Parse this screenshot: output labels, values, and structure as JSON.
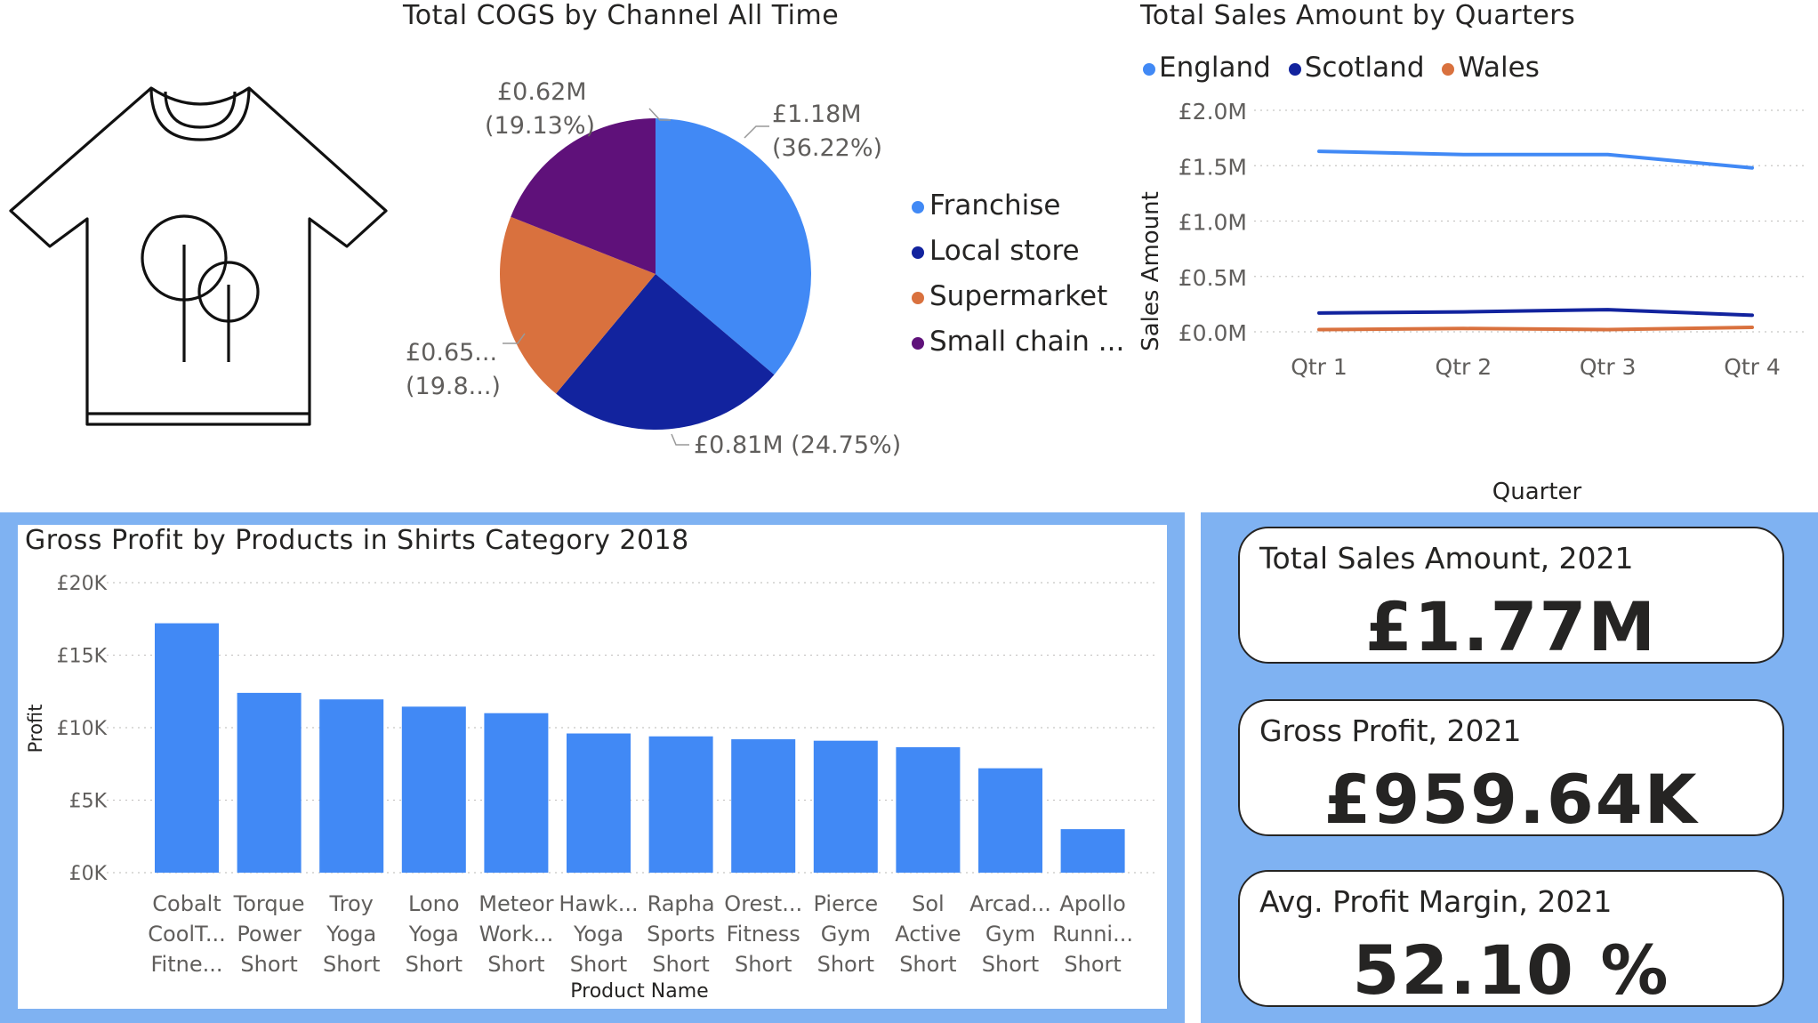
{
  "colors": {
    "blue": "#4189f5",
    "navy": "#12239e",
    "orange": "#d9713e",
    "purple": "#5f117a",
    "panel_blue": "#7fb2f2"
  },
  "icon": "t-shirt-with-trees-icon",
  "pie": {
    "title": "Total COGS by Channel All Time",
    "legend": [
      "Franchise",
      "Local store",
      "Supermarket",
      "Small chain ..."
    ],
    "labels": [
      {
        "value": "£1.18M",
        "pct": "(36.22%)"
      },
      {
        "value": "£0.81M (24.75%)",
        "pct": ""
      },
      {
        "value": "£0.65...",
        "pct": "(19.8...)"
      },
      {
        "value": "£0.62M",
        "pct": "(19.13%)"
      }
    ]
  },
  "line": {
    "title": "Total Sales Amount by Quarters",
    "legend": [
      "England",
      "Scotland",
      "Wales"
    ],
    "ylabel": "Sales Amount",
    "xlabel": "Quarter",
    "yticks": [
      "£0.0M",
      "£0.5M",
      "£1.0M",
      "£1.5M",
      "£2.0M"
    ],
    "xticks": [
      "Qtr 1",
      "Qtr 2",
      "Qtr 3",
      "Qtr 4"
    ]
  },
  "bar": {
    "title": "Gross Profit by Products in Shirts Category 2018",
    "ylabel": "Profit",
    "xlabel": "Product Name",
    "yticks": [
      "£0K",
      "£5K",
      "£10K",
      "£15K",
      "£20K"
    ],
    "product_labels": [
      [
        "Cobalt",
        "CoolT...",
        "Fitne..."
      ],
      [
        "Torque",
        "Power",
        "Short"
      ],
      [
        "Troy",
        "Yoga",
        "Short"
      ],
      [
        "Lono",
        "Yoga",
        "Short"
      ],
      [
        "Meteor",
        "Work...",
        "Short"
      ],
      [
        "Hawk...",
        "Yoga",
        "Short"
      ],
      [
        "Rapha",
        "Sports",
        "Short"
      ],
      [
        "Orest...",
        "Fitness",
        "Short"
      ],
      [
        "Pierce",
        "Gym",
        "Short"
      ],
      [
        "Sol",
        "Active",
        "Short"
      ],
      [
        "Arcad...",
        "Gym",
        "Short"
      ],
      [
        "Apollo",
        "Runni...",
        "Short"
      ]
    ]
  },
  "kpis": [
    {
      "label": "Total Sales Amount, 2021",
      "value": "£1.77M"
    },
    {
      "label": "Gross Profit, 2021",
      "value": "£959.64K"
    },
    {
      "label": "Avg. Profit Margin, 2021",
      "value": "52.10 %"
    }
  ],
  "chart_data": [
    {
      "type": "pie",
      "title": "Total COGS by Channel All Time",
      "categories": [
        "Franchise",
        "Local store",
        "Supermarket",
        "Small chain ..."
      ],
      "values": [
        1.18,
        0.81,
        0.65,
        0.62
      ],
      "percentages": [
        36.22,
        24.75,
        19.8,
        19.13
      ],
      "unit": "£M",
      "legend": "right"
    },
    {
      "type": "line",
      "title": "Total Sales Amount by Quarters",
      "xlabel": "Quarter",
      "ylabel": "Sales Amount",
      "categories": [
        "Qtr 1",
        "Qtr 2",
        "Qtr 3",
        "Qtr 4"
      ],
      "ylim": [
        0,
        2.0
      ],
      "unit": "£M",
      "series": [
        {
          "name": "England",
          "values": [
            1.63,
            1.6,
            1.6,
            1.48
          ]
        },
        {
          "name": "Scotland",
          "values": [
            0.17,
            0.18,
            0.2,
            0.15
          ]
        },
        {
          "name": "Wales",
          "values": [
            0.02,
            0.03,
            0.02,
            0.04
          ]
        }
      ],
      "grid": true,
      "legend": "top-left"
    },
    {
      "type": "bar",
      "title": "Gross Profit by Products in Shirts Category 2018",
      "xlabel": "Product Name",
      "ylabel": "Profit",
      "categories": [
        "Cobalt CoolT... Fitne...",
        "Torque Power Short",
        "Troy Yoga Short",
        "Lono Yoga Short",
        "Meteor Work... Short",
        "Hawk... Yoga Short",
        "Rapha Sports Short",
        "Orest... Fitness Short",
        "Pierce Gym Short",
        "Sol Active Short",
        "Arcad... Gym Short",
        "Apollo Runni... Short"
      ],
      "values": [
        17200,
        12400,
        11950,
        11450,
        11000,
        9600,
        9400,
        9200,
        9100,
        8650,
        7200,
        3000
      ],
      "ylim": [
        0,
        20000
      ],
      "unit": "£",
      "grid": true
    }
  ]
}
